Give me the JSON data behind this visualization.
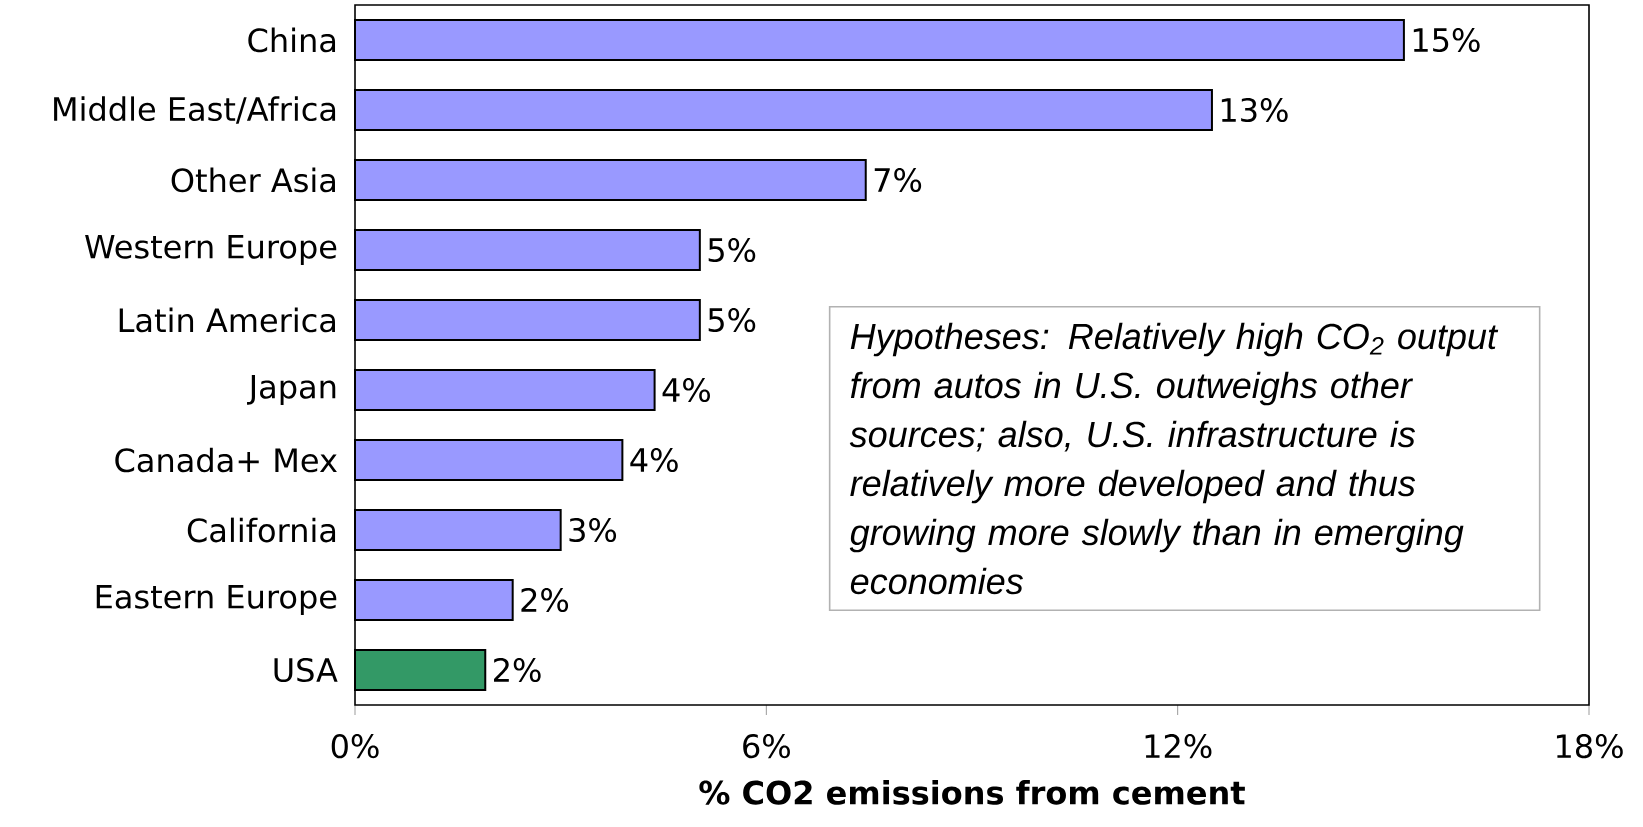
{
  "chart_data": {
    "type": "bar",
    "orientation": "horizontal",
    "xlabel": "% CO2 emissions from cement",
    "categories": [
      "China",
      "Middle East/Africa",
      "Other Asia",
      "Western Europe",
      "Latin America",
      "Japan",
      "Canada+ Mex",
      "California",
      "Eastern Europe",
      "USA"
    ],
    "values": [
      15.3,
      12.5,
      7.45,
      5.03,
      5.03,
      4.37,
      3.9,
      3.0,
      2.3,
      1.9
    ],
    "colors": [
      "#9999ff",
      "#9999ff",
      "#9999ff",
      "#9999ff",
      "#9999ff",
      "#9999ff",
      "#9999ff",
      "#9999ff",
      "#9999ff",
      "#339966"
    ],
    "value_labels": [
      "15%",
      "13%",
      "7%",
      "5%",
      "5%",
      "4%",
      "4%",
      "3%",
      "2%",
      "2%"
    ],
    "xlim": [
      0,
      18
    ],
    "xticks": [
      {
        "value": 0,
        "label": "0%"
      },
      {
        "value": 6,
        "label": "6%"
      },
      {
        "value": 12,
        "label": "12%"
      },
      {
        "value": 18,
        "label": "18%"
      }
    ],
    "annotations": [
      "Hypotheses: Relatively high CO$_{2}$ output from autos in U.S. outweighs other sources; also, U.S. infrastructure is  relatively more developed and thus growing more slowly than in emerging economies"
    ],
    "grid": false
  }
}
